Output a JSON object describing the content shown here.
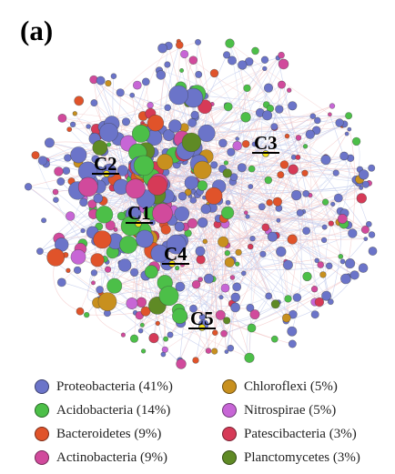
{
  "panel_label": "(a)",
  "clusters": [
    {
      "label": "C1"
    },
    {
      "label": "C2"
    },
    {
      "label": "C3"
    },
    {
      "label": "C4"
    },
    {
      "label": "C5"
    }
  ],
  "legend": [
    {
      "label": "Proteobacteria (41%)",
      "color": "#6b74c9"
    },
    {
      "label": "Acidobacteria (14%)",
      "color": "#4cbf48"
    },
    {
      "label": "Bacteroidetes (9%)",
      "color": "#e0532a"
    },
    {
      "label": "Actinobacteria (9%)",
      "color": "#d14a9c"
    },
    {
      "label": "Chloroflexi (5%)",
      "color": "#c8901e"
    },
    {
      "label": "Nitrospirae (5%)",
      "color": "#c766d6"
    },
    {
      "label": "Patescibacteria (3%)",
      "color": "#d63a57"
    },
    {
      "label": "Planctomycetes (3%)",
      "color": "#5f8a25"
    }
  ]
}
